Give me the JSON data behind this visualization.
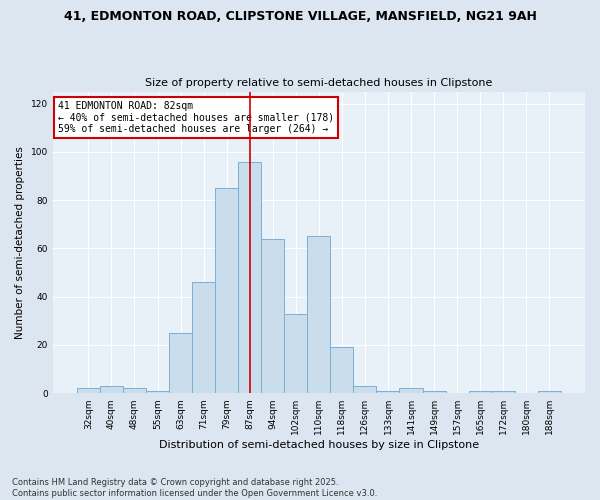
{
  "title1": "41, EDMONTON ROAD, CLIPSTONE VILLAGE, MANSFIELD, NG21 9AH",
  "title2": "Size of property relative to semi-detached houses in Clipstone",
  "xlabel": "Distribution of semi-detached houses by size in Clipstone",
  "ylabel": "Number of semi-detached properties",
  "categories": [
    "32sqm",
    "40sqm",
    "48sqm",
    "55sqm",
    "63sqm",
    "71sqm",
    "79sqm",
    "87sqm",
    "94sqm",
    "102sqm",
    "110sqm",
    "118sqm",
    "126sqm",
    "133sqm",
    "141sqm",
    "149sqm",
    "157sqm",
    "165sqm",
    "172sqm",
    "180sqm",
    "188sqm"
  ],
  "values": [
    2,
    3,
    2,
    1,
    25,
    46,
    85,
    96,
    64,
    33,
    65,
    19,
    3,
    1,
    2,
    1,
    0,
    1,
    1,
    0,
    1
  ],
  "bar_color": "#c9dded",
  "bar_edge_color": "#7bafd4",
  "vline_x": 7,
  "vline_color": "#cc0000",
  "annotation_title": "41 EDMONTON ROAD: 82sqm",
  "annotation_line1": "← 40% of semi-detached houses are smaller (178)",
  "annotation_line2": "59% of semi-detached houses are larger (264) →",
  "annotation_box_color": "#ffffff",
  "annotation_box_edge_color": "#cc0000",
  "ylim": [
    0,
    125
  ],
  "yticks": [
    0,
    20,
    40,
    60,
    80,
    100,
    120
  ],
  "footer1": "Contains HM Land Registry data © Crown copyright and database right 2025.",
  "footer2": "Contains public sector information licensed under the Open Government Licence v3.0.",
  "background_color": "#dce6f0",
  "plot_background_color": "#e8f0f8"
}
